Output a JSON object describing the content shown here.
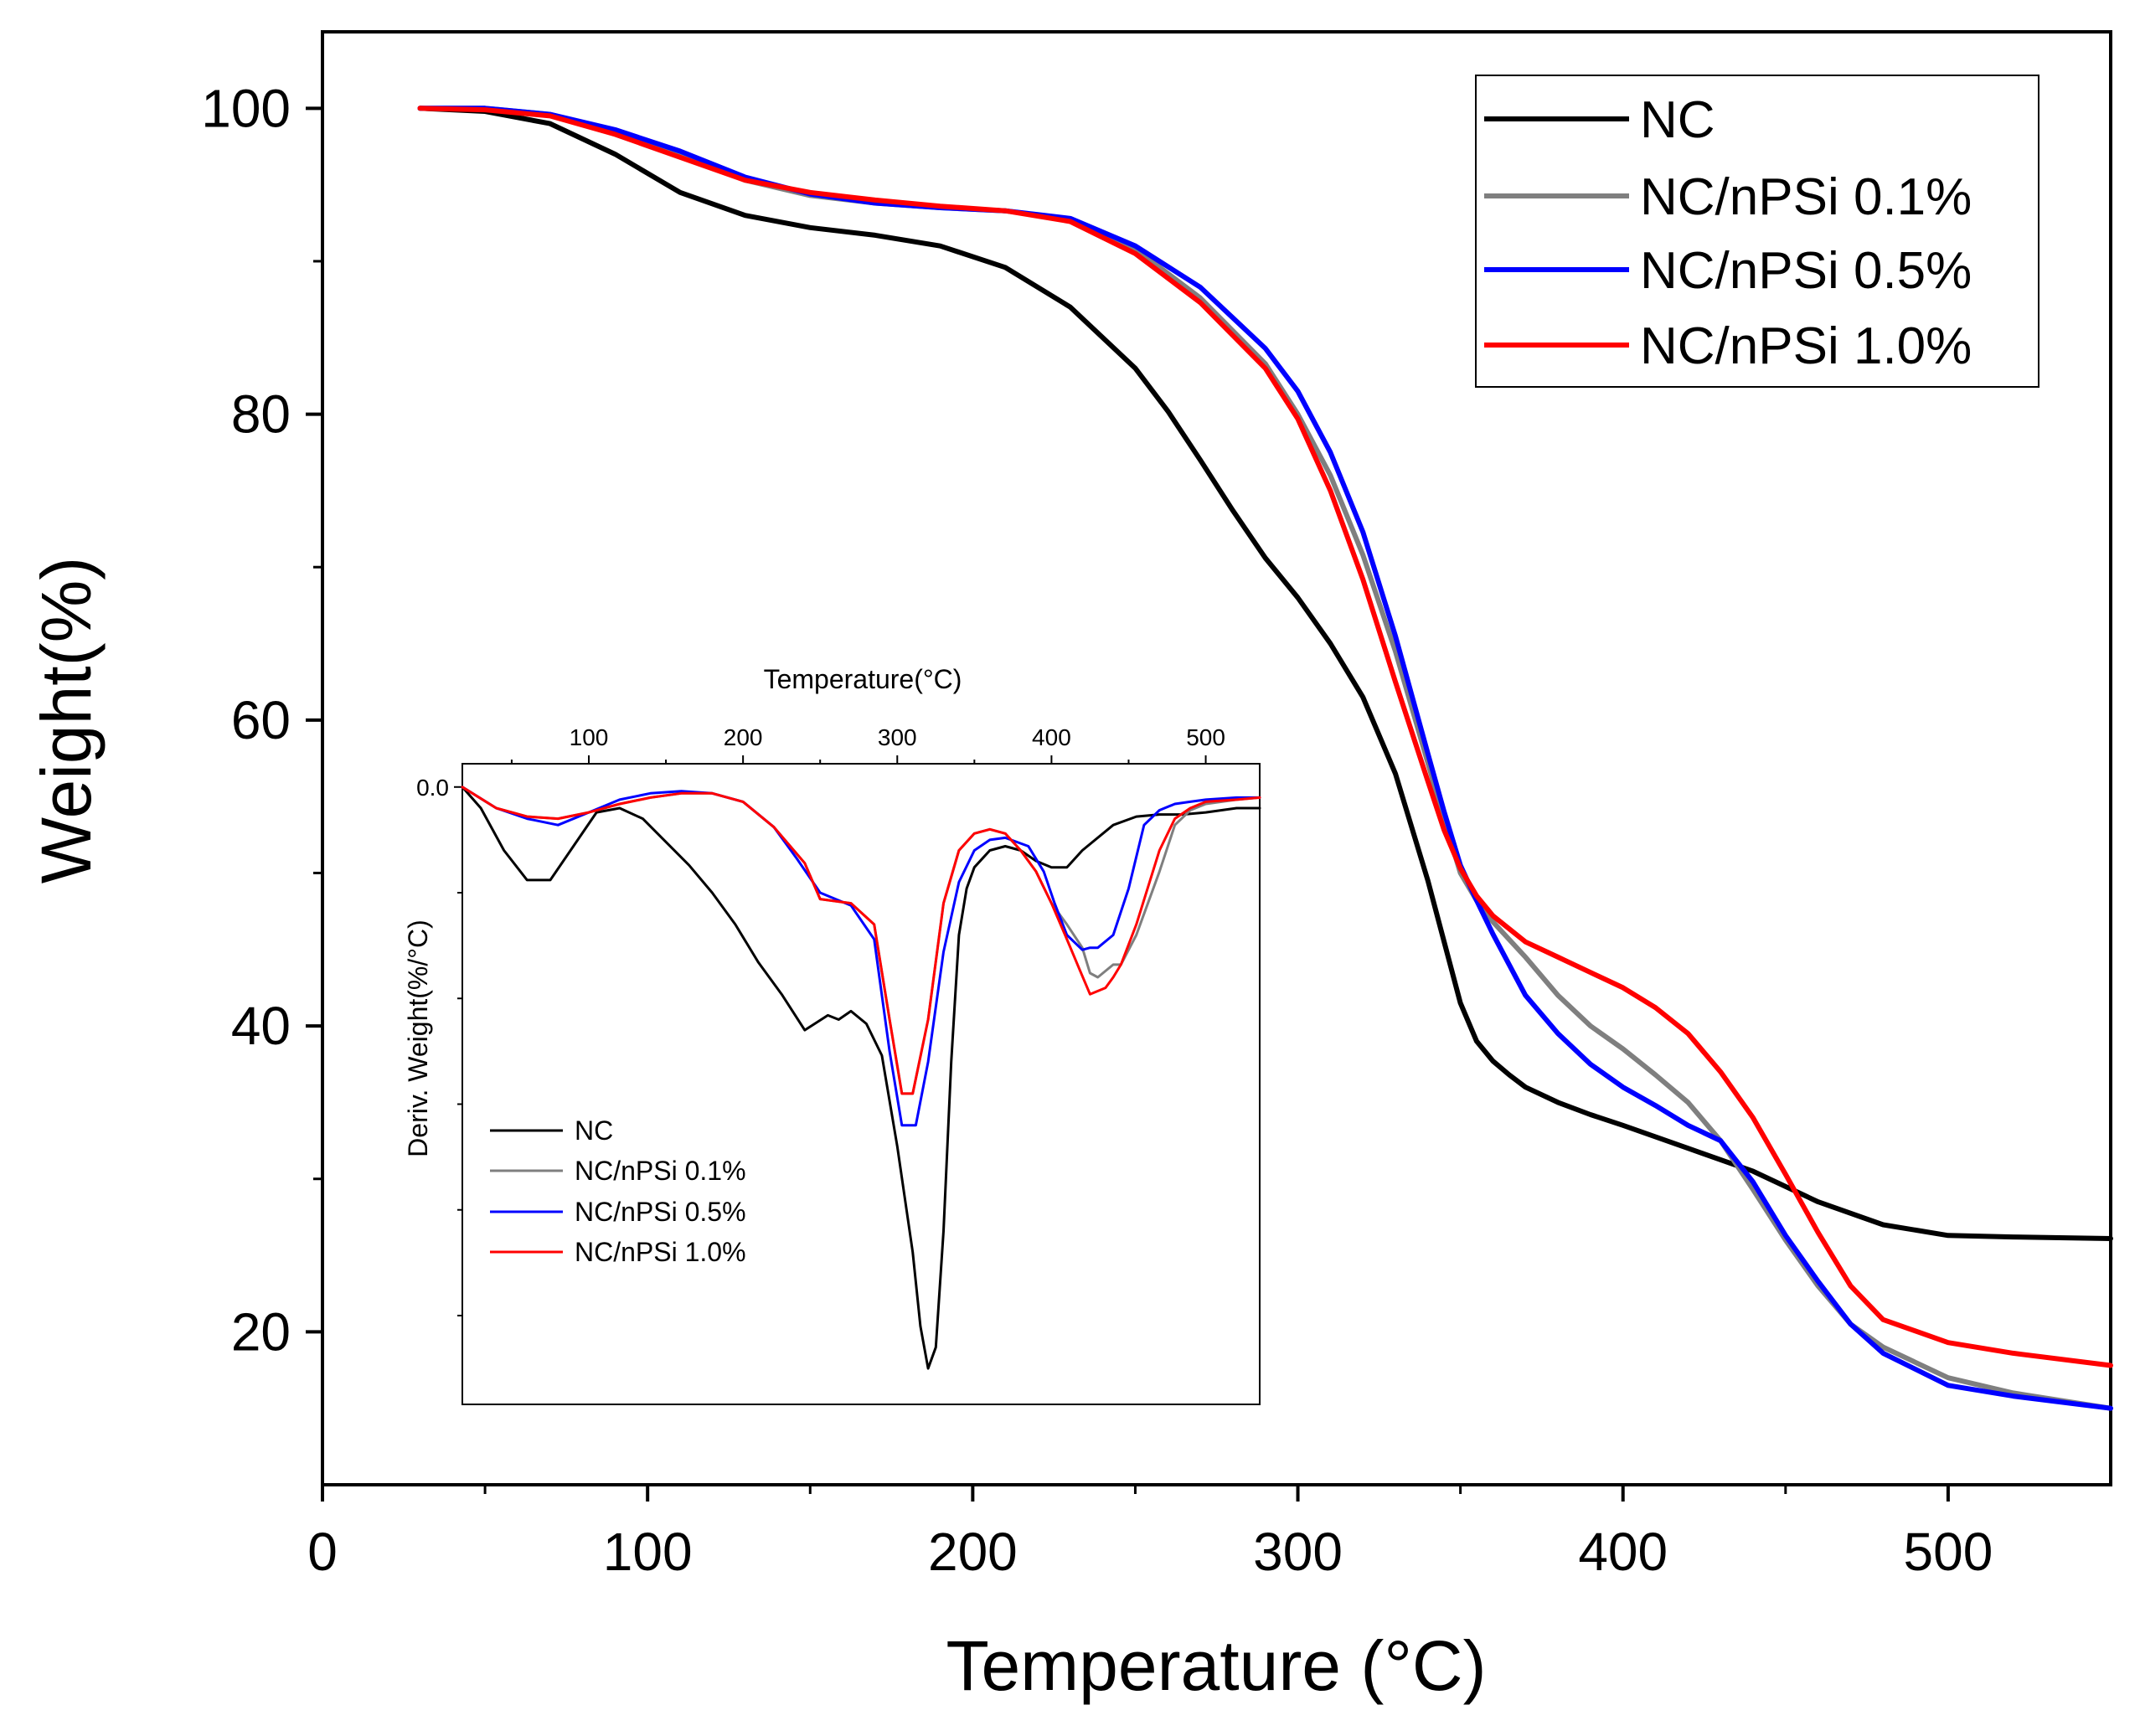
{
  "chart_data": [
    {
      "type": "line",
      "id": "main",
      "title": "",
      "xlabel": "Temperature (°C)",
      "ylabel": "Weight(%)",
      "xlim": [
        0,
        550
      ],
      "ylim": [
        10,
        105
      ],
      "xticks": [
        0,
        100,
        200,
        300,
        400,
        500
      ],
      "yticks": [
        20,
        40,
        60,
        80,
        100
      ],
      "legend_position": "top-right",
      "series": [
        {
          "name": "NC",
          "color": "#000000",
          "x": [
            30,
            50,
            70,
            90,
            110,
            130,
            150,
            170,
            190,
            210,
            230,
            250,
            260,
            270,
            280,
            290,
            300,
            310,
            320,
            330,
            340,
            345,
            350,
            355,
            360,
            365,
            370,
            380,
            390,
            400,
            420,
            440,
            460,
            480,
            500,
            520,
            550
          ],
          "y": [
            100,
            99.8,
            99,
            97,
            94.5,
            93,
            92.2,
            91.7,
            91,
            89.6,
            87,
            83,
            80.2,
            77,
            73.7,
            70.6,
            68,
            65,
            61.5,
            56.5,
            49.5,
            45.5,
            41.5,
            39,
            37.7,
            36.8,
            36,
            35,
            34.2,
            33.5,
            32,
            30.5,
            28.5,
            27,
            26.3,
            26.2,
            26.1
          ]
        },
        {
          "name": "NC/nPSi 0.1%",
          "color": "#7f7f7f",
          "x": [
            30,
            50,
            70,
            90,
            110,
            130,
            150,
            170,
            190,
            210,
            230,
            250,
            270,
            290,
            300,
            310,
            320,
            330,
            340,
            345,
            350,
            355,
            360,
            370,
            380,
            390,
            400,
            410,
            420,
            430,
            440,
            450,
            460,
            470,
            480,
            500,
            520,
            550
          ],
          "y": [
            100,
            100,
            99.6,
            98.5,
            97,
            95.3,
            94.3,
            93.8,
            93.5,
            93.3,
            92.7,
            90.8,
            87.6,
            83.3,
            80,
            76,
            70.8,
            64.5,
            57.2,
            53.5,
            50,
            48.2,
            46.8,
            44.5,
            42,
            40,
            38.5,
            36.8,
            35,
            32.5,
            29.3,
            26,
            23,
            20.5,
            19,
            17,
            16,
            15
          ]
        },
        {
          "name": "NC/nPSi 0.5%",
          "color": "#0000ff",
          "x": [
            30,
            50,
            70,
            90,
            110,
            130,
            150,
            170,
            190,
            210,
            230,
            250,
            270,
            290,
            300,
            310,
            320,
            330,
            340,
            345,
            350,
            355,
            360,
            370,
            380,
            390,
            400,
            410,
            420,
            430,
            440,
            450,
            460,
            470,
            480,
            500,
            520,
            550
          ],
          "y": [
            100,
            100,
            99.6,
            98.6,
            97.2,
            95.5,
            94.4,
            93.8,
            93.5,
            93.3,
            92.8,
            91,
            88.3,
            84.3,
            81.5,
            77.5,
            72.3,
            65.5,
            57.8,
            54,
            50.5,
            48.2,
            46,
            42,
            39.5,
            37.5,
            36,
            34.8,
            33.5,
            32.5,
            29.8,
            26.3,
            23.3,
            20.5,
            18.6,
            16.5,
            15.8,
            15
          ]
        },
        {
          "name": "NC/nPSi 1.0%",
          "color": "#ff0000",
          "x": [
            30,
            50,
            70,
            90,
            110,
            130,
            150,
            170,
            190,
            210,
            230,
            250,
            270,
            290,
            300,
            310,
            320,
            330,
            340,
            345,
            350,
            355,
            360,
            370,
            380,
            390,
            400,
            410,
            420,
            430,
            440,
            450,
            460,
            470,
            480,
            500,
            520,
            550
          ],
          "y": [
            100,
            99.9,
            99.5,
            98.3,
            96.8,
            95.3,
            94.5,
            94,
            93.6,
            93.3,
            92.6,
            90.5,
            87.3,
            83,
            79.7,
            75,
            69.2,
            62.5,
            56,
            52.8,
            50.3,
            48.5,
            47.2,
            45.5,
            44.5,
            43.5,
            42.5,
            41.2,
            39.5,
            37,
            34,
            30.3,
            26.5,
            23,
            20.8,
            19.3,
            18.6,
            17.8
          ]
        }
      ]
    },
    {
      "type": "line",
      "id": "inset",
      "title": "",
      "xlabel": "Temperature(°C)",
      "ylabel": "Deriv. Weight(%/°C)",
      "xlim": [
        18,
        535
      ],
      "ylim": [
        -2.92,
        0.11
      ],
      "xticks": [
        100,
        200,
        300,
        400,
        500
      ],
      "yticks": [
        0.0
      ],
      "ytick_labels": [
        "0.0"
      ],
      "legend_position": "bottom-left",
      "series": [
        {
          "name": "NC",
          "color": "#000000",
          "x": [
            18,
            30,
            45,
            60,
            75,
            90,
            105,
            120,
            135,
            150,
            165,
            180,
            195,
            210,
            225,
            240,
            255,
            262,
            270,
            280,
            290,
            300,
            310,
            315,
            320,
            325,
            330,
            335,
            340,
            345,
            350,
            360,
            370,
            380,
            390,
            400,
            410,
            420,
            440,
            455,
            470,
            485,
            500,
            520,
            535
          ],
          "y": [
            0,
            -0.1,
            -0.3,
            -0.44,
            -0.44,
            -0.28,
            -0.12,
            -0.1,
            -0.15,
            -0.26,
            -0.37,
            -0.5,
            -0.65,
            -0.83,
            -0.98,
            -1.15,
            -1.08,
            -1.1,
            -1.06,
            -1.12,
            -1.27,
            -1.7,
            -2.2,
            -2.55,
            -2.75,
            -2.65,
            -2.1,
            -1.3,
            -0.7,
            -0.48,
            -0.38,
            -0.3,
            -0.28,
            -0.3,
            -0.35,
            -0.38,
            -0.38,
            -0.3,
            -0.18,
            -0.14,
            -0.13,
            -0.13,
            -0.12,
            -0.1,
            -0.1
          ]
        },
        {
          "name": "NC/nPSi 0.1%",
          "color": "#7f7f7f",
          "x": [
            18,
            40,
            60,
            80,
            100,
            120,
            140,
            160,
            180,
            200,
            220,
            240,
            250,
            270,
            285,
            295,
            303,
            310,
            320,
            330,
            340,
            350,
            360,
            370,
            380,
            390,
            400,
            410,
            420,
            425,
            430,
            440,
            445,
            455,
            470,
            480,
            490,
            500,
            520,
            535
          ],
          "y": [
            0,
            -0.1,
            -0.14,
            -0.15,
            -0.12,
            -0.08,
            -0.05,
            -0.03,
            -0.03,
            -0.07,
            -0.19,
            -0.36,
            -0.53,
            -0.55,
            -0.65,
            -1.1,
            -1.45,
            -1.45,
            -1.1,
            -0.55,
            -0.3,
            -0.22,
            -0.2,
            -0.22,
            -0.3,
            -0.4,
            -0.55,
            -0.65,
            -0.76,
            -0.88,
            -0.9,
            -0.84,
            -0.84,
            -0.7,
            -0.4,
            -0.18,
            -0.11,
            -0.08,
            -0.06,
            -0.05
          ]
        },
        {
          "name": "NC/nPSi 0.5%",
          "color": "#0000ff",
          "x": [
            18,
            40,
            60,
            80,
            100,
            120,
            140,
            160,
            180,
            200,
            220,
            235,
            250,
            270,
            285,
            295,
            303,
            312,
            320,
            330,
            340,
            350,
            360,
            370,
            385,
            395,
            402,
            410,
            420,
            425,
            430,
            440,
            450,
            460,
            470,
            480,
            490,
            500,
            520,
            535
          ],
          "y": [
            0,
            -0.1,
            -0.15,
            -0.18,
            -0.12,
            -0.06,
            -0.03,
            -0.02,
            -0.03,
            -0.07,
            -0.19,
            -0.34,
            -0.5,
            -0.56,
            -0.72,
            -1.25,
            -1.6,
            -1.6,
            -1.3,
            -0.78,
            -0.45,
            -0.3,
            -0.25,
            -0.24,
            -0.28,
            -0.4,
            -0.55,
            -0.7,
            -0.77,
            -0.76,
            -0.76,
            -0.7,
            -0.48,
            -0.18,
            -0.11,
            -0.08,
            -0.07,
            -0.06,
            -0.05,
            -0.05
          ]
        },
        {
          "name": "NC/nPSi 1.0%",
          "color": "#ff0000",
          "x": [
            18,
            40,
            60,
            80,
            100,
            120,
            140,
            160,
            180,
            200,
            220,
            240,
            250,
            270,
            285,
            295,
            303,
            310,
            320,
            330,
            340,
            350,
            360,
            370,
            380,
            390,
            400,
            410,
            418,
            425,
            435,
            440,
            445,
            455,
            470,
            480,
            490,
            500,
            520,
            535
          ],
          "y": [
            0,
            -0.1,
            -0.14,
            -0.15,
            -0.12,
            -0.08,
            -0.05,
            -0.03,
            -0.03,
            -0.07,
            -0.19,
            -0.36,
            -0.53,
            -0.55,
            -0.65,
            -1.1,
            -1.45,
            -1.45,
            -1.1,
            -0.55,
            -0.3,
            -0.22,
            -0.2,
            -0.22,
            -0.3,
            -0.4,
            -0.55,
            -0.72,
            -0.86,
            -0.98,
            -0.95,
            -0.9,
            -0.84,
            -0.65,
            -0.3,
            -0.15,
            -0.1,
            -0.07,
            -0.06,
            -0.05
          ]
        }
      ]
    }
  ]
}
